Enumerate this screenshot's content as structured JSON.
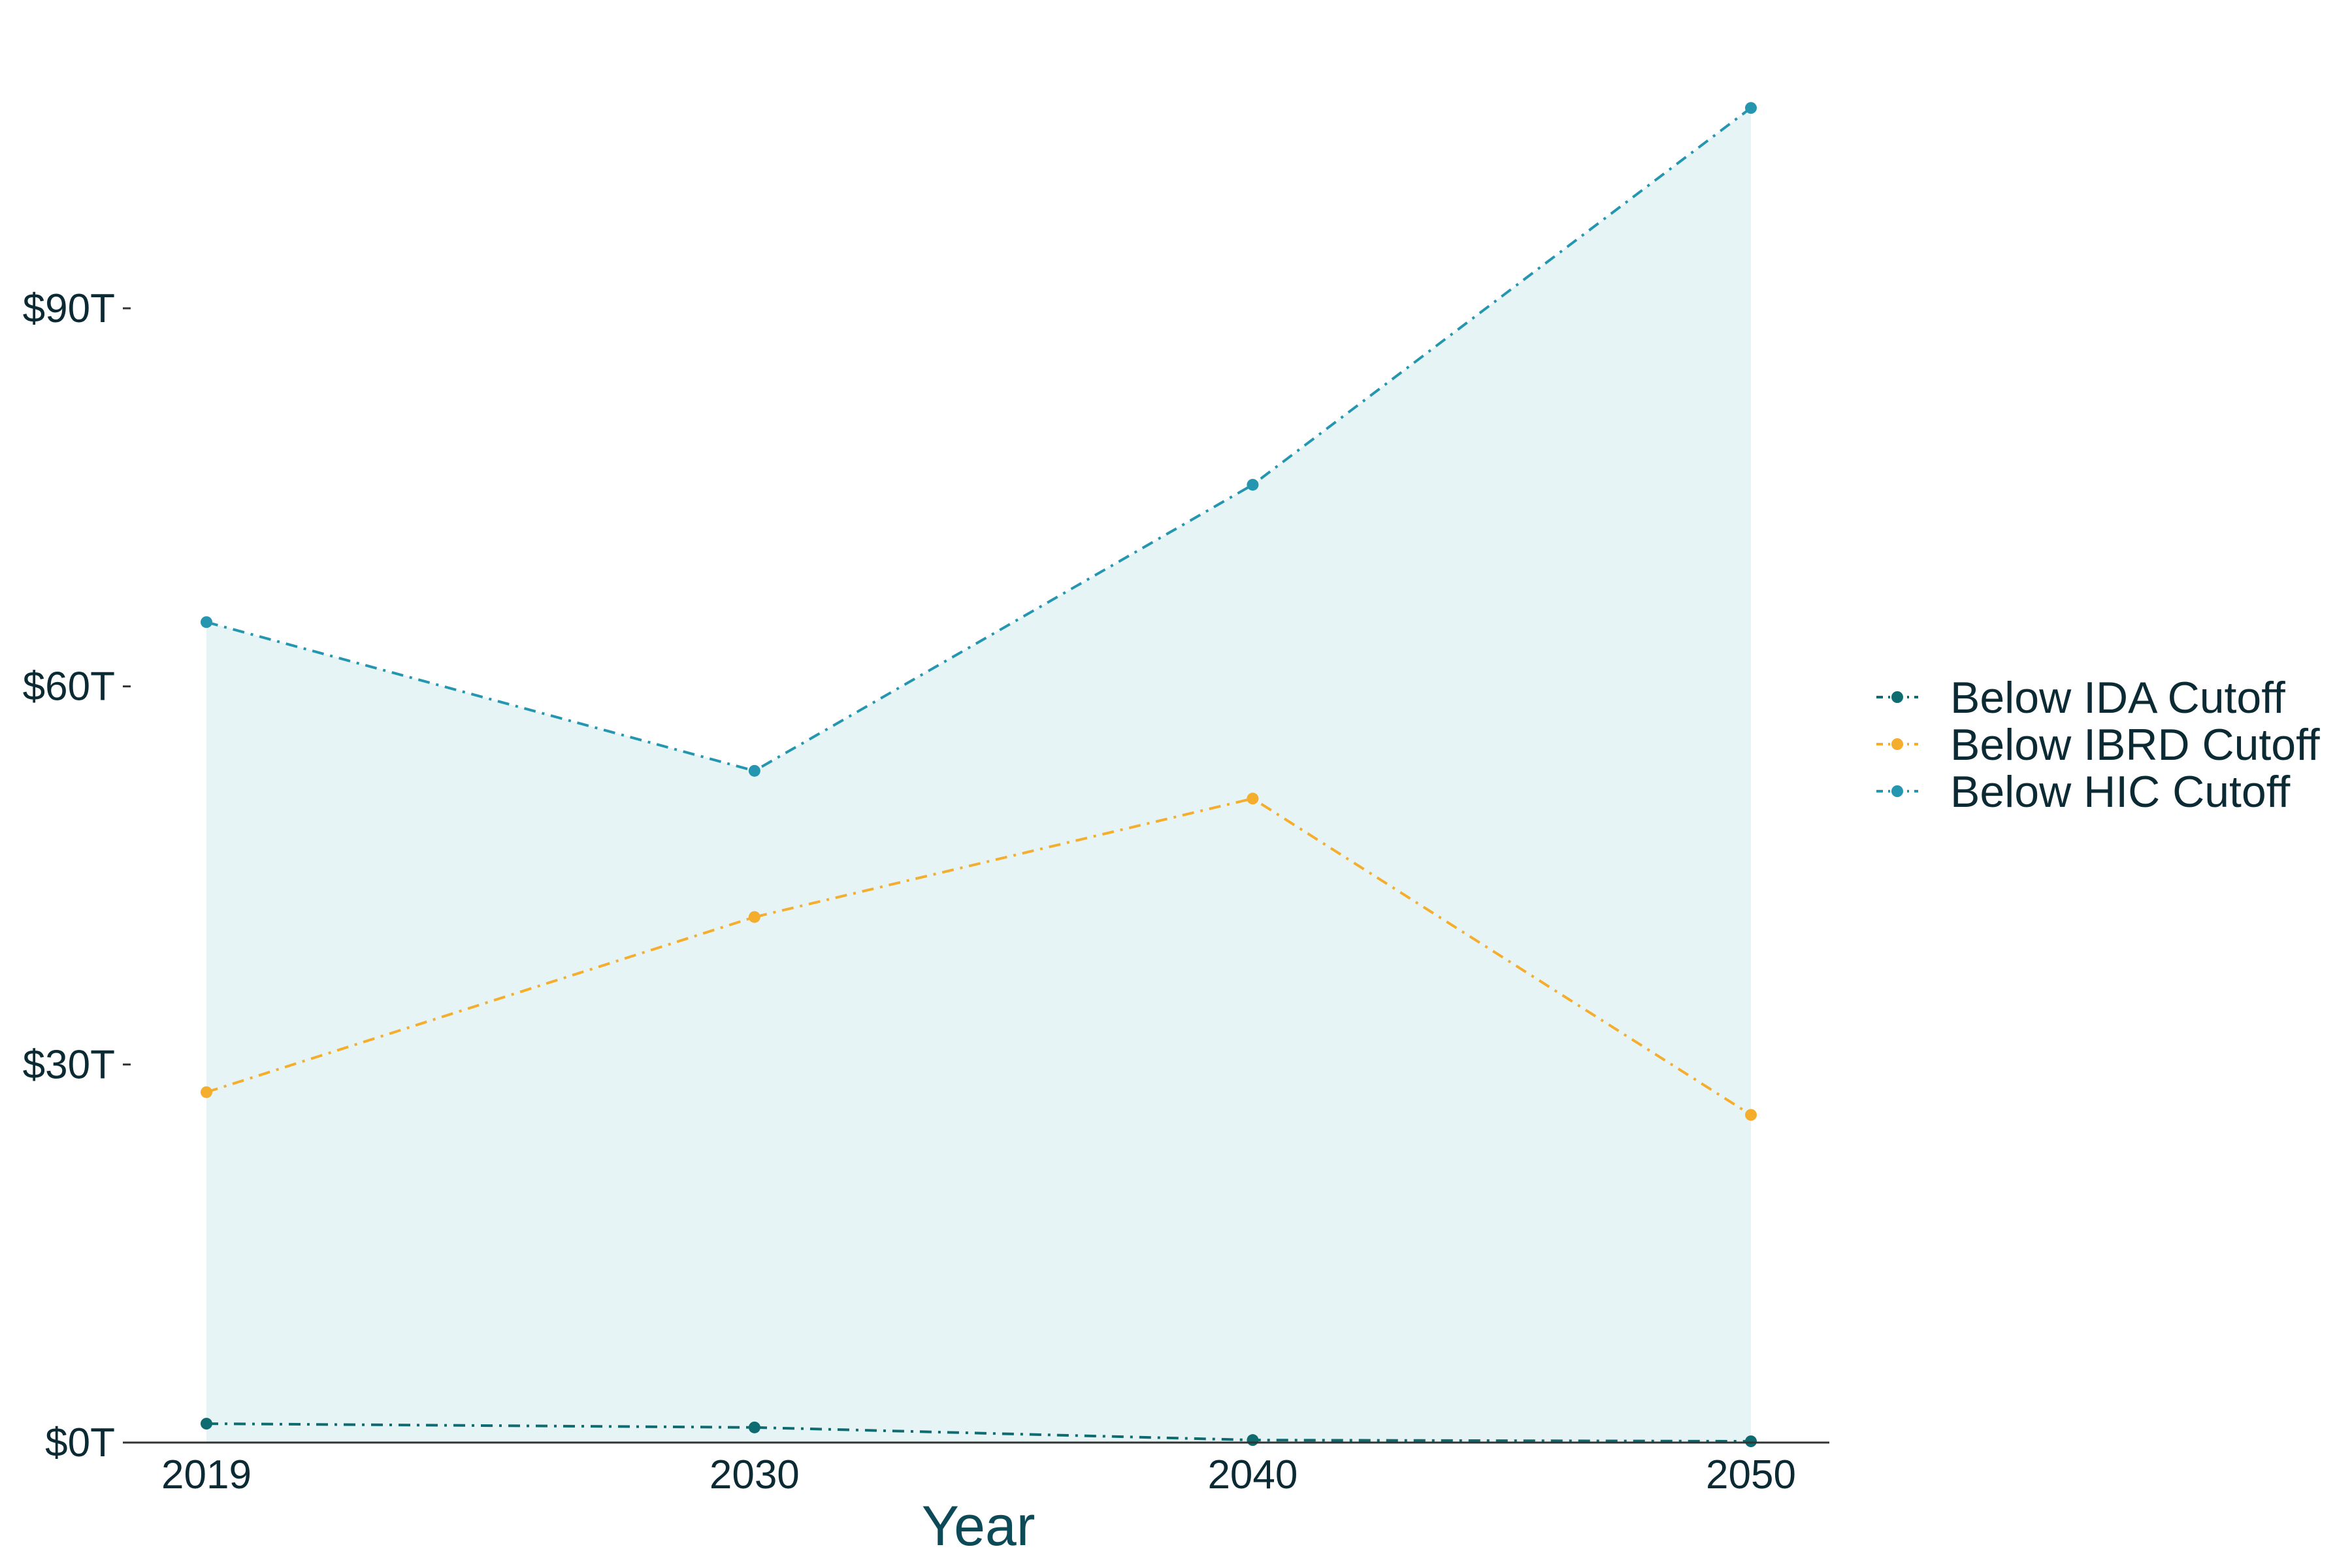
{
  "chart_data": {
    "type": "area",
    "title": "",
    "xlabel": "Year",
    "ylabel": "",
    "x": [
      2019,
      2030,
      2040,
      2050
    ],
    "x_tick_labels": [
      "2019",
      "2030",
      "2040",
      "2050"
    ],
    "y_ticks": [
      0,
      30,
      60,
      90
    ],
    "y_tick_labels": [
      "$0T",
      "$30T",
      "$60T",
      "$90T"
    ],
    "ylim": [
      0,
      108
    ],
    "grid": false,
    "legend_position": "right",
    "line_style": "dash-dot",
    "series": [
      {
        "name": "Below IDA Cutoff",
        "values": [
          1.5,
          1.2,
          0.2,
          0.1
        ],
        "color": "#0e6b6f",
        "fill": "#d6ecec"
      },
      {
        "name": "Below IBRD Cutoff",
        "values": [
          27.8,
          41.7,
          51.1,
          26.0
        ],
        "color": "#f4ad2c",
        "fill": "#fef5e7"
      },
      {
        "name": "Below HIC Cutoff",
        "values": [
          65.1,
          53.3,
          76.0,
          105.9
        ],
        "color": "#2596b0",
        "fill": "#e7f4f6"
      }
    ]
  }
}
